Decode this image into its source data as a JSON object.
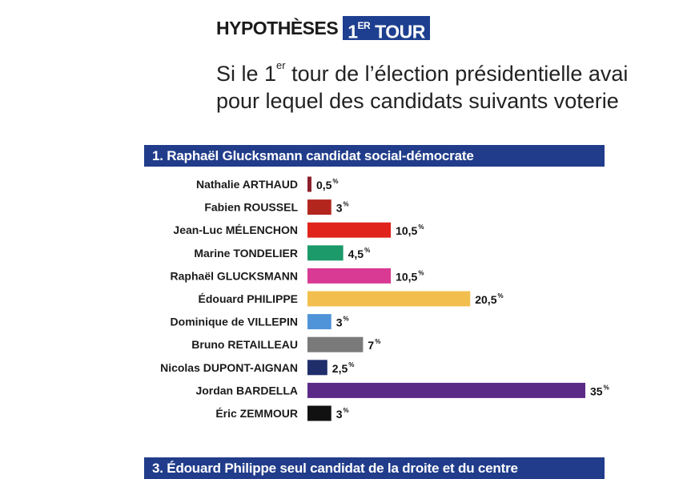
{
  "header": {
    "title": "HYPOTHÈSES",
    "badge_main": "1",
    "badge_sup": "ER",
    "badge_rest": " TOUR"
  },
  "question": {
    "line1_a": "Si le 1",
    "line1_sup": "er",
    "line1_b": " tour de l’élection présidentielle avai",
    "line2": "pour lequel des candidats suivants voterie"
  },
  "section1": {
    "title": "1. Raphaël Glucksmann candidat social-démocrate"
  },
  "section3": {
    "title": "3. Édouard Philippe seul candidat de la droite et du centre"
  },
  "chart_data": {
    "type": "bar",
    "orientation": "horizontal",
    "unit": "%",
    "categories": [
      "Nathalie ARTHAUD",
      "Fabien ROUSSEL",
      "Jean-Luc MÉLENCHON",
      "Marine TONDELIER",
      "Raphaël GLUCKSMANN",
      "Édouard PHILIPPE",
      "Dominique de VILLEPIN",
      "Bruno RETAILLEAU",
      "Nicolas DUPONT-AIGNAN",
      "Jordan BARDELLA",
      "Éric ZEMMOUR"
    ],
    "values": [
      0.5,
      3,
      10.5,
      4.5,
      10.5,
      20.5,
      3,
      7,
      2.5,
      35,
      3
    ],
    "value_labels": [
      "0,5",
      "3",
      "10,5",
      "4,5",
      "10,5",
      "20,5",
      "3",
      "7",
      "2,5",
      "35",
      "3"
    ],
    "colors": [
      "#8b1f2b",
      "#b3261e",
      "#e0241b",
      "#1c9a6a",
      "#d93a93",
      "#f2bf4e",
      "#4f93d8",
      "#7a7a7a",
      "#1f2d6b",
      "#5b2a86",
      "#111111"
    ],
    "grid": false,
    "legend": "none"
  }
}
